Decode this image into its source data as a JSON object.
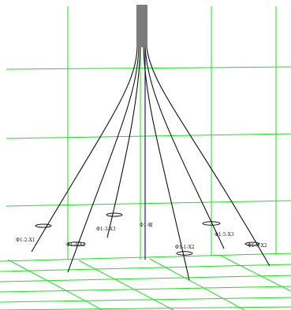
{
  "scene": {
    "background": "#ffffff",
    "grid_color": "#22dd22",
    "well_color": "#111111",
    "vertical_well_color": "#1a1aaa"
  },
  "wells": [
    {
      "id": "w1",
      "label": "Φ1-2-X1"
    },
    {
      "id": "w2",
      "label": "Φ1-4-X2"
    },
    {
      "id": "w3",
      "label": "Φ1-3-X3"
    },
    {
      "id": "w4",
      "label": "Φ1-极"
    },
    {
      "id": "w5",
      "label": "Φ1-1-X2"
    },
    {
      "id": "w6",
      "label": "Φ1-5-X3"
    },
    {
      "id": "w7",
      "label": "Φ1-3-X2"
    }
  ]
}
